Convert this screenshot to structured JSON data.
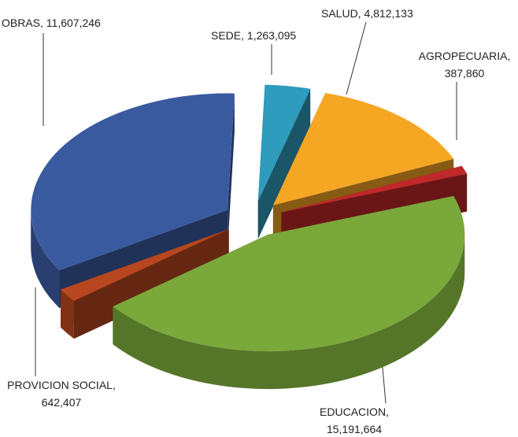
{
  "chart_data": {
    "type": "pie3d",
    "categories": [
      "SEDE,",
      "SALUD,",
      "AGROPECUARIA,",
      "EDUCACION,",
      "PROVICION SOCIAL,",
      "OBRAS,"
    ],
    "values": [
      1263095,
      4812133,
      387860,
      15191664,
      642407,
      11607246
    ],
    "value_labels": [
      "1,263,095",
      "4,812,133",
      "387,860",
      "15,191,664",
      "642,407",
      "11,607,246"
    ],
    "colors": [
      "#2f9bbd",
      "#f5a623",
      "#c0282a",
      "#7aa83a",
      "#b8461e",
      "#3a5aa0"
    ]
  }
}
